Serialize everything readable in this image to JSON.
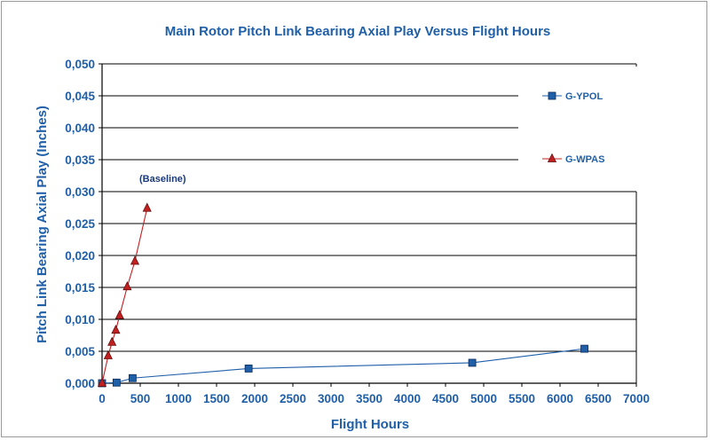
{
  "chart_data": {
    "type": "line",
    "title": "Main Rotor Pitch Link Bearing Axial Play Versus Flight Hours",
    "xlabel": "Flight Hours",
    "ylabel": "Pitch Link Bearing Axial Play (Inches)",
    "xlim": [
      0,
      7000
    ],
    "ylim": [
      0,
      0.05
    ],
    "x_ticks": [
      "0",
      "500",
      "1000",
      "1500",
      "2000",
      "2500",
      "3000",
      "3500",
      "4000",
      "4500",
      "5000",
      "5500",
      "6000",
      "6500",
      "7000"
    ],
    "y_ticks": [
      "0,000",
      "0,005",
      "0,010",
      "0,015",
      "0,020",
      "0,025",
      "0,030",
      "0,035",
      "0,040",
      "0,045",
      "0,050"
    ],
    "grid": "horizontal",
    "legend_position": "right",
    "annotation": "(Baseline)",
    "series": [
      {
        "name": "G-YPOL",
        "color": "#1f5fa8",
        "marker": "square",
        "points": [
          {
            "x": 0,
            "y": 0.0
          },
          {
            "x": 190,
            "y": 0.0001
          },
          {
            "x": 400,
            "y": 0.0008
          },
          {
            "x": 1920,
            "y": 0.0023
          },
          {
            "x": 4850,
            "y": 0.0032
          },
          {
            "x": 6320,
            "y": 0.0054
          }
        ]
      },
      {
        "name": "G-WPAS",
        "color": "#c02020",
        "marker": "triangle",
        "points": [
          {
            "x": 0,
            "y": 0.0
          },
          {
            "x": 80,
            "y": 0.0043
          },
          {
            "x": 130,
            "y": 0.0064
          },
          {
            "x": 180,
            "y": 0.0083
          },
          {
            "x": 230,
            "y": 0.0106
          },
          {
            "x": 330,
            "y": 0.0151
          },
          {
            "x": 430,
            "y": 0.0191
          },
          {
            "x": 590,
            "y": 0.0274
          }
        ]
      }
    ]
  }
}
